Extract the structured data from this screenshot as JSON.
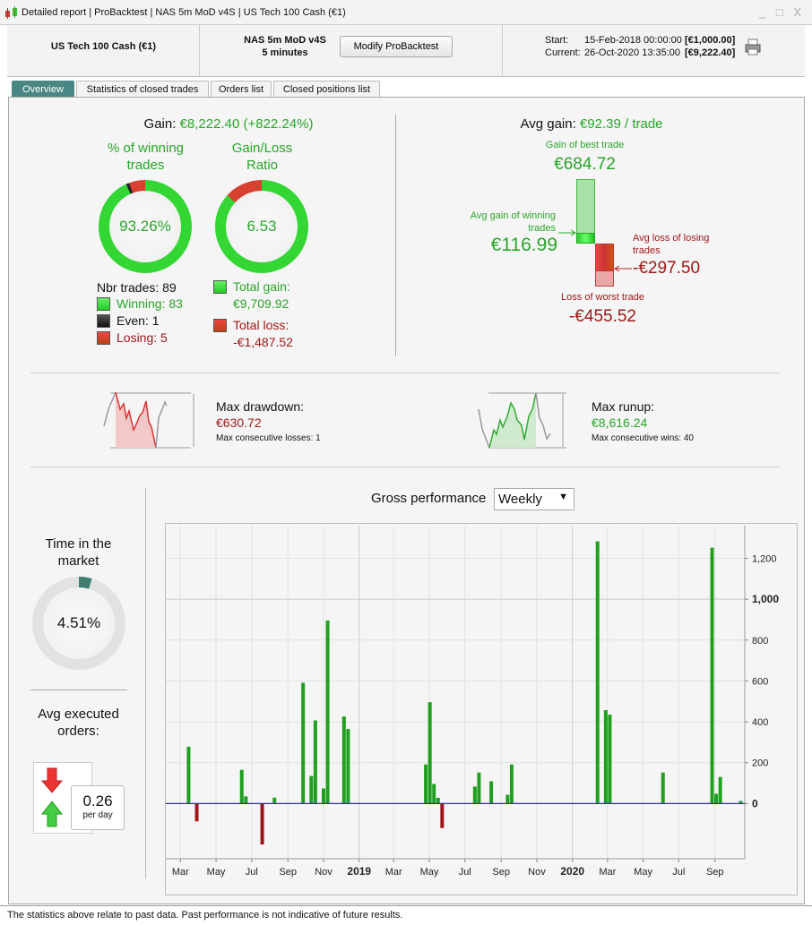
{
  "window": {
    "title": "Detailed report | ProBacktest | NAS 5m MoD v4S | US Tech 100 Cash (€1)",
    "controls": "_ □ X"
  },
  "header": {
    "instrument": "US Tech 100 Cash (€1)",
    "strategy": "NAS 5m MoD v4S",
    "timeframe": "5 minutes",
    "modify_label": "Modify ProBacktest",
    "start_label": "Start:",
    "start_date": "15-Feb-2018 00:00:00",
    "start_value": "[€1,000.00]",
    "current_label": "Current:",
    "current_date": "26-Oct-2020 13:35:00",
    "current_value": "[€9,222.40]"
  },
  "tabs": [
    {
      "label": "Overview",
      "active": true
    },
    {
      "label": "Statistics of closed trades"
    },
    {
      "label": "Orders list"
    },
    {
      "label": "Closed positions list"
    }
  ],
  "gain": {
    "label": "Gain:",
    "value": "€8,222.40 (+822.24%)"
  },
  "winning": {
    "title": "% of winning trades",
    "value": "93.26%",
    "win_pct": 93.26,
    "even_pct": 1.12,
    "lose_pct": 5.62,
    "nbr_trades": "Nbr trades: 89",
    "winning": "Winning: 83",
    "even": "Even: 1",
    "losing": "Losing: 5"
  },
  "ratio": {
    "title": "Gain/Loss Ratio",
    "value": "6.53",
    "total_gain_label": "Total gain:",
    "total_gain": "€9,709.92",
    "total_loss_label": "Total loss:",
    "total_loss": "-€1,487.52"
  },
  "avg": {
    "label": "Avg gain:",
    "value": "€92.39 / trade",
    "best_label": "Gain of best trade",
    "best": "€684.72",
    "avg_win_label": "Avg gain of winning trades",
    "avg_win": "€116.99",
    "avg_loss_label": "Avg loss of losing trades",
    "avg_loss": "-€297.50",
    "worst_label": "Loss of worst trade",
    "worst": "-€455.52"
  },
  "drawdown": {
    "label": "Max drawdown:",
    "value": "€630.72",
    "consecutive": "Max consecutive losses: 1"
  },
  "runup": {
    "label": "Max runup:",
    "value": "€8,616.24",
    "consecutive": "Max consecutive wins: 40"
  },
  "time_in_market": {
    "title": "Time in the market",
    "value": "4.51%",
    "pct": 4.51
  },
  "executed": {
    "title": "Avg executed orders:",
    "value": "0.26",
    "unit": "per day"
  },
  "performance": {
    "title": "Gross performance",
    "period": "Weekly"
  },
  "colors": {
    "gain": "#2aa52a",
    "loss": "#a01818",
    "accent": "#4a8684"
  },
  "footer": "The statistics above relate to past data. Past performance is not indicative of future results.",
  "chart_data": {
    "type": "bar",
    "xlim": [
      "2018-02-04",
      "2020-10-22"
    ],
    "ylim": [
      -270,
      1360
    ],
    "x_ticks": [
      {
        "date": "2018-03-01",
        "label": "Mar"
      },
      {
        "date": "2018-05-01",
        "label": "May"
      },
      {
        "date": "2018-07-01",
        "label": "Jul"
      },
      {
        "date": "2018-09-01",
        "label": "Sep"
      },
      {
        "date": "2018-11-01",
        "label": "Nov"
      },
      {
        "date": "2019-01-01",
        "label": "2019",
        "bold": true
      },
      {
        "date": "2019-03-01",
        "label": "Mar"
      },
      {
        "date": "2019-05-01",
        "label": "May"
      },
      {
        "date": "2019-07-01",
        "label": "Jul"
      },
      {
        "date": "2019-09-01",
        "label": "Sep"
      },
      {
        "date": "2019-11-01",
        "label": "Nov"
      },
      {
        "date": "2020-01-01",
        "label": "2020",
        "bold": true
      },
      {
        "date": "2020-03-01",
        "label": "Mar"
      },
      {
        "date": "2020-05-01",
        "label": "May"
      },
      {
        "date": "2020-07-01",
        "label": "Jul"
      },
      {
        "date": "2020-09-01",
        "label": "Sep"
      }
    ],
    "y_ticks": [
      {
        "v": 0,
        "label": "0",
        "bold": true
      },
      {
        "v": 200,
        "label": "200"
      },
      {
        "v": 400,
        "label": "400"
      },
      {
        "v": 600,
        "label": "600"
      },
      {
        "v": 800,
        "label": "800"
      },
      {
        "v": 1000,
        "label": "1,000",
        "bold": true
      },
      {
        "v": 1200,
        "label": "1,200"
      }
    ],
    "grid": true,
    "bars": [
      [
        "2018-03-15",
        278
      ],
      [
        "2018-03-29",
        -87
      ],
      [
        "2018-06-14",
        165
      ],
      [
        "2018-06-21",
        35
      ],
      [
        "2018-07-19",
        -200
      ],
      [
        "2018-08-09",
        29
      ],
      [
        "2018-09-27",
        591
      ],
      [
        "2018-10-11",
        135
      ],
      [
        "2018-10-18",
        407
      ],
      [
        "2018-11-01",
        74
      ],
      [
        "2018-11-08",
        896
      ],
      [
        "2018-12-06",
        426
      ],
      [
        "2018-12-13",
        365
      ],
      [
        "2019-04-25",
        191
      ],
      [
        "2019-05-02",
        496
      ],
      [
        "2019-05-09",
        96
      ],
      [
        "2019-05-16",
        28
      ],
      [
        "2019-05-23",
        -120
      ],
      [
        "2019-07-18",
        83
      ],
      [
        "2019-07-25",
        152
      ],
      [
        "2019-08-15",
        109
      ],
      [
        "2019-09-12",
        43
      ],
      [
        "2019-09-19",
        191
      ],
      [
        "2020-02-13",
        1283
      ],
      [
        "2020-02-27",
        457
      ],
      [
        "2020-03-05",
        435
      ],
      [
        "2020-06-04",
        152
      ],
      [
        "2020-08-27",
        1252
      ],
      [
        "2020-09-03",
        48
      ],
      [
        "2020-09-10",
        130
      ],
      [
        "2020-10-15",
        13
      ]
    ]
  }
}
